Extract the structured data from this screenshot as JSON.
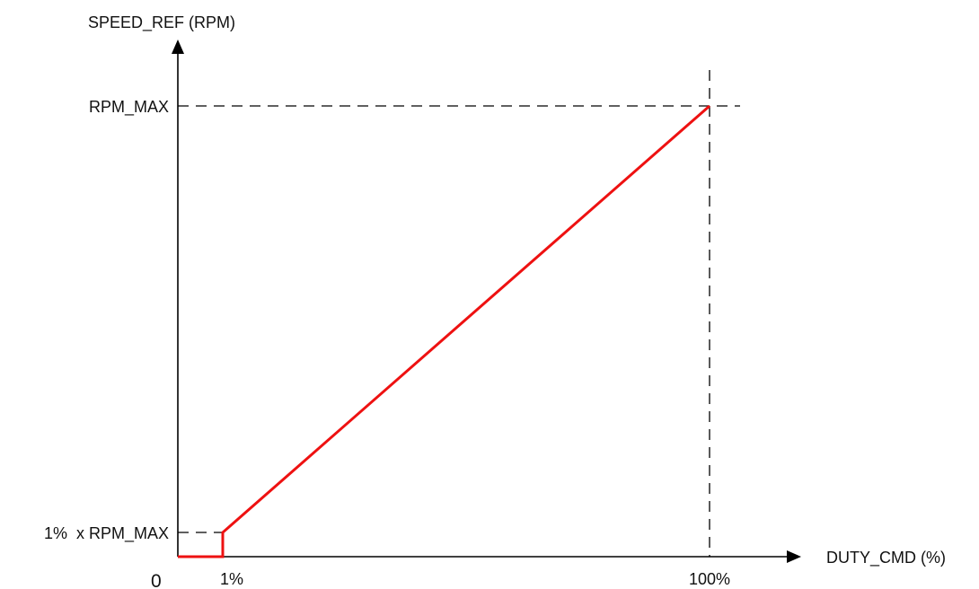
{
  "diagram": {
    "y_axis_label": "SPEED_REF (RPM)",
    "x_axis_label": "DUTY_CMD (%)",
    "origin_label": "0",
    "y_tick_max": "RPM_MAX",
    "y_tick_min": "1%  x RPM_MAX",
    "x_tick_min": "1%",
    "x_tick_max": "100%",
    "colors": {
      "curve": "#ee1111",
      "axis": "#000000"
    }
  }
}
